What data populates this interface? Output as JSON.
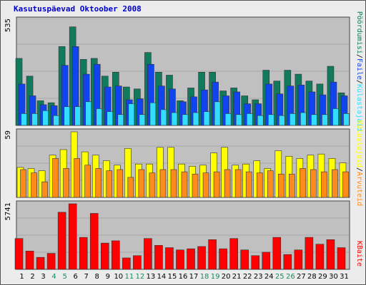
{
  "chart_data": {
    "type": "bar",
    "title": "Kasutuspäevad Oktoober 2008",
    "categories": [
      "1",
      "2",
      "3",
      "4",
      "5",
      "6",
      "7",
      "8",
      "9",
      "10",
      "11",
      "12",
      "13",
      "14",
      "15",
      "16",
      "17",
      "18",
      "19",
      "20",
      "21",
      "22",
      "23",
      "24",
      "25",
      "26",
      "27",
      "28",
      "29",
      "30",
      "31"
    ],
    "weekend_days": [
      "4",
      "5",
      "11",
      "12",
      "18",
      "19",
      "25",
      "26"
    ],
    "day_color": "#000000",
    "weekend_color": "#1a8a5a",
    "panels": [
      {
        "id": "top",
        "max_label": "535",
        "ylim": [
          0,
          535
        ],
        "series": [
          {
            "name": "Pöördumisi",
            "color": "#127a5c",
            "values": [
              340,
              250,
              125,
              115,
              400,
              500,
              335,
              340,
              250,
              270,
              195,
              185,
              370,
              270,
              255,
              125,
              190,
              270,
              270,
              175,
              190,
              150,
              130,
              280,
              225,
              280,
              260,
              225,
              210,
              300,
              165
            ]
          },
          {
            "name": "Faile",
            "color": "#1144ee",
            "values": [
              210,
              150,
              105,
              100,
              305,
              400,
              260,
              310,
              195,
              200,
              130,
              135,
              310,
              200,
              185,
              120,
              145,
              180,
              220,
              150,
              170,
              110,
              110,
              210,
              160,
              200,
              205,
              170,
              155,
              220,
              150
            ]
          },
          {
            "name": "Külastajaid",
            "color": "#33ddff",
            "values": [
              60,
              60,
              75,
              50,
              95,
              95,
              120,
              85,
              70,
              55,
              110,
              55,
              115,
              80,
              65,
              55,
              65,
              70,
              120,
              60,
              55,
              60,
              50,
              55,
              50,
              60,
              65,
              55,
              55,
              85,
              60
            ]
          }
        ]
      },
      {
        "id": "middle",
        "max_label": "59",
        "ylim": [
          0,
          59
        ],
        "series": [
          {
            "name": "Külastajaid",
            "color": "#ffff00",
            "values": [
              27,
              26,
              24,
              38,
              43,
              59,
              41,
              38,
              33,
              29,
              44,
              30,
              30,
              45,
              45,
              30,
              28,
              29,
              40,
              45,
              29,
              30,
              33,
              26,
              42,
              37,
              35,
              38,
              39,
              35,
              31
            ]
          },
          {
            "name": "Arvuteid",
            "color": "#ff8c1a",
            "values": [
              25,
              22,
              14,
              35,
              26,
              35,
              29,
              26,
              24,
              25,
              18,
              25,
              22,
              25,
              25,
              23,
              21,
              22,
              23,
              25,
              25,
              23,
              22,
              24,
              21,
              21,
              26,
              25,
              23,
              25,
              23
            ]
          }
        ]
      },
      {
        "id": "bottom",
        "max_label": "5741",
        "ylim": [
          0,
          5741
        ],
        "series": [
          {
            "name": "KBaite",
            "color": "#ff0000",
            "values": [
              2700,
              1600,
              1050,
              1400,
              5000,
              5741,
              2800,
              4900,
              2300,
              2500,
              1000,
              1200,
              2700,
              2100,
              1900,
              1700,
              1800,
              2000,
              2600,
              1800,
              2700,
              1700,
              1200,
              1500,
              2800,
              1300,
              1700,
              2800,
              2200,
              2600,
              1900
            ]
          }
        ]
      }
    ],
    "legend": {
      "top_items": [
        {
          "text": "Pöördumisi",
          "color": "#127a5c"
        },
        {
          "text": "/",
          "color": "#000000"
        },
        {
          "text": "Faile",
          "color": "#1144ee"
        },
        {
          "text": "/",
          "color": "#000000"
        },
        {
          "text": "Külastajaid",
          "color": "#33ddff"
        }
      ],
      "middle_items": [
        {
          "text": "Külastajaid",
          "color": "#ffff00"
        },
        {
          "text": "/",
          "color": "#000000"
        },
        {
          "text": "Arvuteid",
          "color": "#ff8c1a"
        }
      ],
      "bottom_items": [
        {
          "text": "KBaite",
          "color": "#ff0000"
        }
      ]
    }
  }
}
